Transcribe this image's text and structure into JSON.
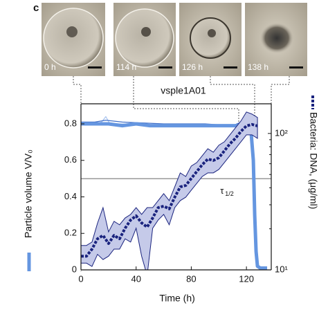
{
  "panel_label": "c",
  "images": [
    {
      "label": "0 h"
    },
    {
      "label": "114 h"
    },
    {
      "label": "126 h"
    },
    {
      "label": "138 h"
    }
  ],
  "chart_data": {
    "type": "line",
    "title": "vsple1A01",
    "xlabel": "Time (h)",
    "ylabel": "Particle volume V/V₀",
    "y2label": "Bacteria: DNA, (μg/ml)",
    "xlim": [
      0,
      138
    ],
    "xticks": [
      0,
      40,
      80,
      120
    ],
    "ylim": [
      0,
      0.91
    ],
    "yticks": [
      0,
      0.2,
      0.4,
      0.6,
      0.8
    ],
    "y2lim": [
      10,
      165
    ],
    "y2log": true,
    "y2ticks": [
      {
        "value": 10,
        "label": "10¹"
      },
      {
        "value": 100,
        "label": "10²"
      }
    ],
    "threshold": 0.5,
    "annotation": {
      "text": "τ",
      "sub": "1/2",
      "x": 101,
      "y": 0.43
    },
    "series": [
      {
        "color": "#a9c4ef",
        "linewidth": 1.2,
        "x": [
          0,
          10,
          15,
          18,
          21,
          30,
          60,
          90,
          110,
          118,
          121,
          123,
          125,
          126,
          127,
          128,
          130,
          135
        ],
        "values": [
          0.8,
          0.8,
          0.81,
          0.84,
          0.8,
          0.8,
          0.79,
          0.79,
          0.79,
          0.8,
          0.84,
          0.82,
          0.6,
          0.3,
          0.1,
          0.02,
          0.01,
          0.01
        ]
      },
      {
        "color": "#3f6fc9",
        "linewidth": 1.2,
        "x": [
          0,
          10,
          18,
          30,
          60,
          90,
          110,
          116,
          120,
          122,
          124,
          125,
          126,
          127,
          128,
          130,
          135
        ],
        "values": [
          0.81,
          0.81,
          0.82,
          0.81,
          0.8,
          0.8,
          0.79,
          0.81,
          0.86,
          0.83,
          0.7,
          0.5,
          0.25,
          0.08,
          0.02,
          0.01,
          0.01
        ]
      },
      {
        "color": "#6596e0",
        "linewidth": 5,
        "x": [
          0,
          10,
          20,
          30,
          40,
          50,
          60,
          70,
          80,
          90,
          100,
          110,
          120,
          123,
          125,
          126,
          127,
          128,
          130,
          135
        ],
        "values": [
          0.8,
          0.8,
          0.8,
          0.79,
          0.8,
          0.79,
          0.79,
          0.79,
          0.79,
          0.79,
          0.79,
          0.79,
          0.79,
          0.79,
          0.6,
          0.3,
          0.1,
          0.02,
          0.01,
          0.01
        ]
      },
      {
        "color": "#1a237e",
        "linewidth": 4,
        "dashed": true,
        "axis": "y2",
        "band_color": "#c5cae9",
        "x": [
          0,
          4,
          8,
          12,
          16,
          20,
          24,
          28,
          32,
          36,
          40,
          44,
          48,
          52,
          56,
          60,
          64,
          68,
          72,
          76,
          80,
          84,
          88,
          92,
          96,
          100,
          104,
          108,
          112,
          116,
          120,
          124,
          128
        ],
        "values": [
          12.6,
          12.6,
          14.2,
          16.9,
          17.9,
          15.6,
          17.9,
          16.9,
          20.2,
          23.2,
          24.9,
          22.1,
          20.6,
          24.0,
          28.6,
          29.3,
          28.0,
          34.1,
          40.6,
          41.6,
          46.8,
          52.6,
          59.1,
          64.9,
          63.4,
          66.4,
          74.6,
          83.9,
          92.1,
          103.5,
          113.7,
          116.4,
          113.7
        ],
        "lower": [
          11.2,
          11.2,
          10.6,
          13.0,
          11.9,
          12.6,
          14.2,
          14.2,
          16.9,
          16.0,
          20.2,
          12.6,
          9.1,
          20.2,
          23.2,
          25.5,
          21.4,
          28.6,
          32.2,
          34.1,
          38.4,
          43.1,
          48.4,
          51.4,
          51.4,
          54.5,
          61.2,
          68.8,
          77.3,
          86.9,
          97.7,
          97.7,
          92.1
        ],
        "upper": [
          15.1,
          15.1,
          16.0,
          22.0,
          28.6,
          19.0,
          22.7,
          21.4,
          24.0,
          25.5,
          28.6,
          25.5,
          28.6,
          28.6,
          32.2,
          36.2,
          32.2,
          40.6,
          51.4,
          48.4,
          57.7,
          61.2,
          68.8,
          77.3,
          72.9,
          82.0,
          86.9,
          97.7,
          109.9,
          123.4,
          143.7,
          138.7,
          130.9
        ]
      }
    ]
  }
}
